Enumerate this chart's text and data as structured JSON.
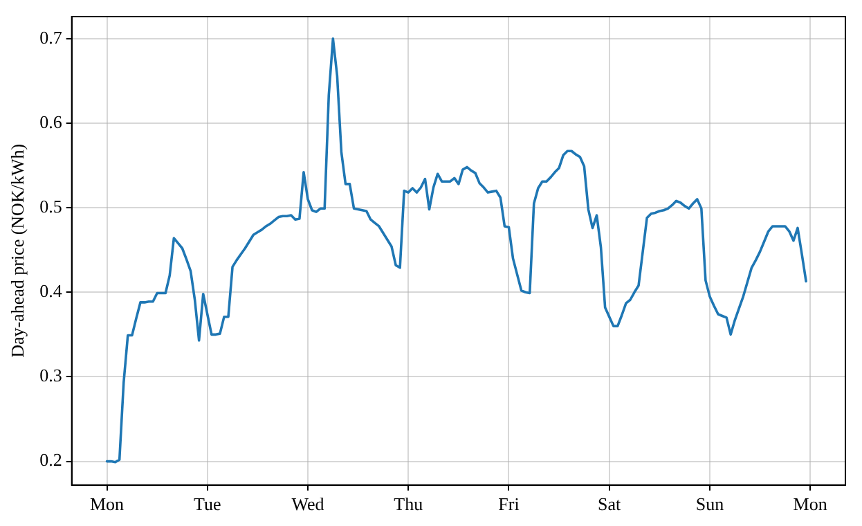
{
  "chart_data": {
    "type": "line",
    "ylabel": "Day-ahead price (NOK/kWh)",
    "categories": [
      "Mon",
      null,
      null,
      null,
      null,
      null,
      null,
      null,
      null,
      null,
      null,
      null,
      null,
      null,
      null,
      null,
      null,
      null,
      null,
      null,
      null,
      null,
      null,
      null,
      "Tue",
      null,
      null,
      null,
      null,
      null,
      null,
      null,
      null,
      null,
      null,
      null,
      null,
      null,
      null,
      null,
      null,
      null,
      null,
      null,
      null,
      null,
      null,
      null,
      "Wed",
      null,
      null,
      null,
      null,
      null,
      null,
      null,
      null,
      null,
      null,
      null,
      null,
      null,
      null,
      null,
      null,
      null,
      null,
      null,
      null,
      null,
      null,
      null,
      "Thu",
      null,
      null,
      null,
      null,
      null,
      null,
      null,
      null,
      null,
      null,
      null,
      null,
      null,
      null,
      null,
      null,
      null,
      null,
      null,
      null,
      null,
      null,
      null,
      "Fri",
      null,
      null,
      null,
      null,
      null,
      null,
      null,
      null,
      null,
      null,
      null,
      null,
      null,
      null,
      null,
      null,
      null,
      null,
      null,
      null,
      null,
      null,
      null,
      "Sat",
      null,
      null,
      null,
      null,
      null,
      null,
      null,
      null,
      null,
      null,
      null,
      null,
      null,
      null,
      null,
      null,
      null,
      null,
      null,
      null,
      null,
      null,
      null,
      "Sun",
      null,
      null,
      null,
      null,
      null,
      null,
      null,
      null,
      null,
      null,
      null,
      null,
      null,
      null,
      null,
      null,
      null,
      null,
      null,
      null,
      null,
      null,
      null,
      "Mon"
    ],
    "ylim": [
      0.172,
      0.726
    ],
    "yticks": [
      0.2,
      0.3,
      0.4,
      0.5,
      0.6,
      0.7
    ],
    "grid": true,
    "marker": "none",
    "line_style": "solid",
    "series": [
      {
        "color": "#1f77b4",
        "values": [
          0.2,
          0.2,
          0.199,
          0.202,
          0.293,
          0.349,
          0.349,
          0.369,
          0.388,
          0.388,
          0.389,
          0.389,
          0.399,
          0.399,
          0.399,
          0.42,
          0.464,
          0.458,
          0.452,
          0.439,
          0.425,
          0.391,
          0.343,
          0.398,
          0.374,
          0.35,
          0.35,
          0.351,
          0.371,
          0.371,
          0.43,
          0.438,
          0.445,
          0.452,
          0.46,
          0.468,
          0.471,
          0.474,
          0.478,
          0.481,
          0.485,
          0.489,
          0.49,
          0.49,
          0.491,
          0.486,
          0.487,
          0.542,
          0.51,
          0.497,
          0.495,
          0.499,
          0.499,
          0.633,
          0.7,
          0.656,
          0.566,
          0.528,
          0.528,
          0.499,
          0.498,
          0.497,
          0.496,
          0.486,
          0.482,
          0.478,
          0.47,
          0.462,
          0.454,
          0.432,
          0.429,
          0.52,
          0.518,
          0.523,
          0.518,
          0.524,
          0.534,
          0.498,
          0.524,
          0.54,
          0.531,
          0.531,
          0.531,
          0.535,
          0.528,
          0.545,
          0.548,
          0.544,
          0.541,
          0.529,
          0.524,
          0.518,
          0.519,
          0.52,
          0.512,
          0.478,
          0.477,
          0.44,
          0.421,
          0.402,
          0.4,
          0.399,
          0.505,
          0.523,
          0.531,
          0.531,
          0.536,
          0.542,
          0.547,
          0.562,
          0.567,
          0.567,
          0.563,
          0.56,
          0.549,
          0.498,
          0.476,
          0.491,
          0.453,
          0.382,
          0.371,
          0.36,
          0.36,
          0.373,
          0.387,
          0.391,
          0.4,
          0.408,
          0.448,
          0.488,
          0.493,
          0.494,
          0.496,
          0.497,
          0.499,
          0.503,
          0.508,
          0.506,
          0.502,
          0.499,
          0.505,
          0.51,
          0.499,
          0.414,
          0.395,
          0.384,
          0.374,
          0.372,
          0.37,
          0.35,
          0.367,
          0.381,
          0.395,
          0.412,
          0.429,
          0.438,
          0.448,
          0.46,
          0.472,
          0.478,
          0.478,
          0.478,
          0.478,
          0.472,
          0.461,
          0.476,
          0.445,
          0.413,
          null
        ]
      }
    ]
  }
}
